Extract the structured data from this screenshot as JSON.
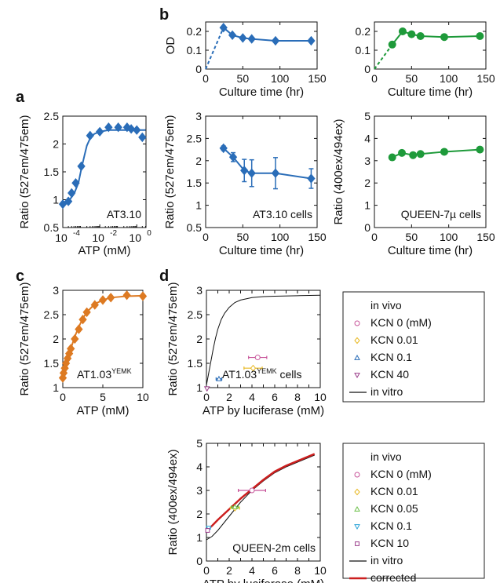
{
  "panel_letters": {
    "a": "a",
    "b": "b",
    "c": "c",
    "d": "d"
  },
  "colors": {
    "blue": "#2a6db8",
    "green": "#1e9a3a",
    "orange": "#dd7a22",
    "black": "#111111",
    "pink": "#c8559a",
    "yellow": "#e8b820",
    "lightgreen": "#6cc04a",
    "cyan": "#2aa3d8",
    "purple": "#9a3d8a",
    "red": "#cc1f1f"
  },
  "chart_data": [
    {
      "id": "b1",
      "type": "line",
      "ylabel": "OD",
      "xlabel": "Culture time (hr)",
      "xlim": [
        0,
        150
      ],
      "ylim": [
        0,
        0.25
      ],
      "xticks": [
        0,
        50,
        100,
        150
      ],
      "yticks": [
        0,
        0.1,
        0.2
      ],
      "xticklabels": [
        "0",
        "50",
        "100",
        "150"
      ],
      "yticklabels": [
        "0",
        "0.1",
        "0.2"
      ],
      "color": "blue",
      "marker": "diamond",
      "dashed_to_origin": true,
      "x": [
        24,
        36,
        50,
        62,
        94,
        142
      ],
      "y": [
        0.22,
        0.18,
        0.165,
        0.16,
        0.15,
        0.15
      ]
    },
    {
      "id": "b2",
      "type": "line",
      "ylabel": "",
      "xlabel": "Culture time (hr)",
      "xlim": [
        0,
        150
      ],
      "ylim": [
        0,
        0.25
      ],
      "xticks": [
        0,
        50,
        100,
        150
      ],
      "yticks": [
        0,
        0.1,
        0.2
      ],
      "xticklabels": [
        "0",
        "50",
        "100",
        "150"
      ],
      "yticklabels": [
        "0",
        "0.1",
        "0.2"
      ],
      "color": "green",
      "marker": "circle",
      "dashed_to_origin": true,
      "x": [
        24,
        38,
        50,
        62,
        94,
        142
      ],
      "y": [
        0.13,
        0.2,
        0.185,
        0.175,
        0.17,
        0.175
      ]
    },
    {
      "id": "a",
      "type": "line",
      "ylabel": "Ratio (527em/475em)",
      "xlabel": "ATP (mM)",
      "xscale": "log",
      "xlim": [
        -4,
        0.5
      ],
      "ylim": [
        0.5,
        2.5
      ],
      "xticks": [
        -4,
        -2,
        0
      ],
      "yticks": [
        0.5,
        1,
        1.5,
        2,
        2.5
      ],
      "xticklabels_mant": [
        "10",
        "10",
        "10"
      ],
      "xticklabels_exp": [
        "-4",
        "-2",
        "0"
      ],
      "yticklabels": [
        "0.5",
        "1",
        "1.5",
        "2",
        "2.5"
      ],
      "color": "blue",
      "marker": "diamond",
      "annotation": "AT3.10",
      "x": [
        0.0001,
        0.0002,
        0.0003,
        0.0005,
        0.001,
        0.003,
        0.01,
        0.03,
        0.1,
        0.3,
        0.5,
        1,
        2
      ],
      "y": [
        0.92,
        0.97,
        1.12,
        1.3,
        1.6,
        2.15,
        2.22,
        2.3,
        2.3,
        2.3,
        2.27,
        2.25,
        2.12
      ],
      "fit_x": [
        0.0001,
        0.0002,
        0.0004,
        0.0007,
        0.001,
        0.0015,
        0.002,
        0.003,
        0.005,
        0.01,
        0.03,
        0.1,
        1,
        3
      ],
      "fit_y": [
        0.9,
        0.97,
        1.1,
        1.3,
        1.55,
        1.8,
        1.97,
        2.1,
        2.18,
        2.22,
        2.25,
        2.25,
        2.25,
        2.25
      ]
    },
    {
      "id": "b3",
      "type": "line",
      "ylabel": "Ratio (527em/475em)",
      "xlabel": "Culture time (hr)",
      "xlim": [
        0,
        150
      ],
      "ylim": [
        0.5,
        3
      ],
      "xticks": [
        0,
        50,
        100,
        150
      ],
      "yticks": [
        0.5,
        1,
        1.5,
        2,
        2.5,
        3
      ],
      "xticklabels": [
        "0",
        "50",
        "100",
        "150"
      ],
      "yticklabels": [
        "0.5",
        "1",
        "1.5",
        "2",
        "2.5",
        "3"
      ],
      "color": "blue",
      "marker": "diamond",
      "annotation": "AT3.10 cells",
      "x": [
        24,
        37,
        52,
        62,
        94,
        142
      ],
      "y": [
        2.28,
        2.08,
        1.78,
        1.72,
        1.72,
        1.6
      ],
      "err": [
        0.05,
        0.1,
        0.25,
        0.3,
        0.35,
        0.22
      ]
    },
    {
      "id": "b4",
      "type": "line",
      "ylabel": "Ratio (400ex/494ex)",
      "xlabel": "Culture time (hr)",
      "xlim": [
        0,
        150
      ],
      "ylim": [
        0,
        5
      ],
      "xticks": [
        0,
        50,
        100,
        150
      ],
      "yticks": [
        0,
        1,
        2,
        3,
        4,
        5
      ],
      "xticklabels": [
        "0",
        "50",
        "100",
        "150"
      ],
      "yticklabels": [
        "0",
        "1",
        "2",
        "3",
        "4",
        "5"
      ],
      "color": "green",
      "marker": "circle",
      "annotation": "QUEEN-7µ cells",
      "x": [
        24,
        37,
        52,
        62,
        94,
        142
      ],
      "y": [
        3.15,
        3.35,
        3.25,
        3.3,
        3.4,
        3.5
      ]
    },
    {
      "id": "c",
      "type": "line",
      "ylabel": "Ratio (527em/475em)",
      "xlabel": "ATP (mM)",
      "xlim": [
        0,
        10
      ],
      "ylim": [
        1,
        3
      ],
      "xticks": [
        0,
        5,
        10
      ],
      "yticks": [
        1,
        1.5,
        2,
        2.5,
        3
      ],
      "xticklabels": [
        "0",
        "5",
        "10"
      ],
      "yticklabels": [
        "1",
        "1.5",
        "2",
        "2.5",
        "3"
      ],
      "color": "orange",
      "marker": "diamond",
      "annotation_main": "AT1.03",
      "annotation_sup": "YEMK",
      "x": [
        0,
        0.1,
        0.25,
        0.4,
        0.6,
        0.8,
        1.0,
        1.5,
        2.0,
        2.5,
        3,
        4,
        5,
        6,
        8,
        10
      ],
      "y": [
        1.2,
        1.3,
        1.4,
        1.5,
        1.6,
        1.7,
        1.8,
        2.0,
        2.2,
        2.4,
        2.55,
        2.7,
        2.8,
        2.85,
        2.9,
        2.88
      ],
      "fit_x": [
        0,
        0.3,
        0.6,
        1,
        1.5,
        2,
        2.5,
        3,
        4,
        5,
        6,
        8,
        10
      ],
      "fit_y": [
        1.18,
        1.38,
        1.58,
        1.8,
        2.05,
        2.25,
        2.42,
        2.55,
        2.72,
        2.8,
        2.85,
        2.88,
        2.89
      ]
    },
    {
      "id": "d1",
      "type": "scatter",
      "ylabel": "Ratio (527em/475em)",
      "xlabel": "ATP by luciferase (mM)",
      "xlim": [
        0,
        10
      ],
      "ylim": [
        1,
        3
      ],
      "xticks": [
        0,
        1,
        2,
        3,
        4,
        5,
        6,
        7,
        8,
        9,
        10
      ],
      "yticks": [
        1,
        1.5,
        2,
        2.5,
        3
      ],
      "xticklabels": [
        "0",
        "",
        "2",
        "",
        "4",
        "",
        "6",
        "",
        "8",
        "",
        "10"
      ],
      "yticklabels": [
        "1",
        "1.5",
        "2",
        "2.5",
        "3"
      ],
      "annotation_main": "AT1.03",
      "annotation_sup": "YEMK",
      "annotation_tail": " cells",
      "legend_title": "in vivo",
      "series": [
        {
          "name": "KCN 0 (mM)",
          "color": "pink",
          "marker": "circle",
          "x": 4.5,
          "y": 1.62,
          "xerr": 0.8
        },
        {
          "name": "KCN 0.01",
          "color": "yellow",
          "marker": "diamond",
          "x": 4.1,
          "y": 1.4,
          "xerr": 0.8
        },
        {
          "name": "KCN 0.1",
          "color": "blue",
          "marker": "triangle",
          "x": 1.1,
          "y": 1.18,
          "xerr": 0.25
        },
        {
          "name": "KCN 40",
          "color": "purple",
          "marker": "triangle-down",
          "x": 0.05,
          "y": 0.98,
          "xerr": 0.05
        }
      ],
      "fit_label": "in vitro",
      "fit_x": [
        0,
        0.2,
        0.4,
        0.6,
        0.8,
        1,
        1.3,
        1.6,
        2,
        2.5,
        3,
        4,
        5,
        6,
        8,
        10
      ],
      "fit_y": [
        1.05,
        1.3,
        1.55,
        1.8,
        2.02,
        2.2,
        2.4,
        2.53,
        2.65,
        2.75,
        2.8,
        2.85,
        2.87,
        2.88,
        2.89,
        2.9
      ]
    },
    {
      "id": "d2",
      "type": "scatter",
      "ylabel": "Ratio (400ex/494ex)",
      "xlabel": "ATP by luciferase (mM)",
      "xlim": [
        0,
        10
      ],
      "ylim": [
        0,
        5
      ],
      "xticks": [
        0,
        1,
        2,
        3,
        4,
        5,
        6,
        7,
        8,
        9,
        10
      ],
      "yticks": [
        0,
        1,
        2,
        3,
        4,
        5
      ],
      "xticklabels": [
        "0",
        "",
        "2",
        "",
        "4",
        "",
        "6",
        "",
        "8",
        "",
        "10"
      ],
      "yticklabels": [
        "0",
        "1",
        "2",
        "3",
        "4",
        "5"
      ],
      "annotation": "QUEEN-2m cells",
      "legend_title": "in vivo",
      "series": [
        {
          "name": "KCN 0 (mM)",
          "color": "pink",
          "marker": "circle",
          "x": 4,
          "y": 3.0,
          "xerr": 1.2
        },
        {
          "name": "KCN 0.01",
          "color": "yellow",
          "marker": "diamond",
          "x": 2.5,
          "y": 2.25,
          "xerr": 0.4
        },
        {
          "name": "KCN 0.05",
          "color": "lightgreen",
          "marker": "triangle",
          "x": 2.5,
          "y": 2.3,
          "xerr": 0.3
        },
        {
          "name": "KCN 0.1",
          "color": "cyan",
          "marker": "triangle-down",
          "x": 0.2,
          "y": 1.4,
          "xerr": 0.15
        },
        {
          "name": "KCN 10",
          "color": "purple",
          "marker": "square",
          "x": 0.1,
          "y": 1.3,
          "xerr": 0.1
        }
      ],
      "fit_label": "in vitro",
      "corrected_label": "corrected",
      "fit_x": [
        0,
        0.5,
        1,
        2,
        3,
        4,
        5,
        6,
        7,
        8,
        9,
        9.5
      ],
      "fit_y": [
        0.9,
        1.05,
        1.3,
        1.9,
        2.5,
        3.0,
        3.4,
        3.75,
        4.0,
        4.2,
        4.4,
        4.5
      ],
      "corr_x": [
        0,
        0.5,
        1,
        2,
        3,
        4,
        5,
        6,
        7,
        8,
        9,
        9.5
      ],
      "corr_y": [
        1.3,
        1.5,
        1.75,
        2.2,
        2.65,
        3.05,
        3.45,
        3.8,
        4.05,
        4.25,
        4.45,
        4.55
      ]
    }
  ]
}
